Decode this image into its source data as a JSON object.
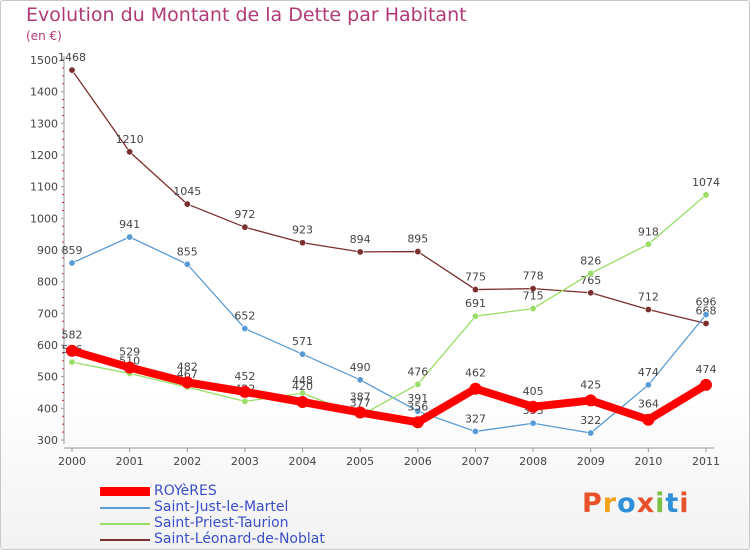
{
  "title": "Evolution du Montant de la Dette par Habitant",
  "unit_label": "(en €)",
  "logo": {
    "text": "Proxiti",
    "colors": [
      "#e8512a",
      "#f2a31c",
      "#2f8fd8",
      "#e8512a",
      "#7bc043",
      "#2f8fd8",
      "#e8512a"
    ]
  },
  "chart_data": {
    "type": "line",
    "title": "Evolution du Montant de la Dette par Habitant",
    "ylabel": "(en €)",
    "xlabel": "",
    "ylim": [
      300,
      1500
    ],
    "yticks": [
      300,
      400,
      500,
      600,
      700,
      800,
      900,
      1000,
      1100,
      1200,
      1300,
      1400,
      1500
    ],
    "x": [
      "2000",
      "2001",
      "2002",
      "2003",
      "2004",
      "2005",
      "2006",
      "2007",
      "2008",
      "2009",
      "2010",
      "2011"
    ],
    "grid": false,
    "legend_position": "bottom-left",
    "series": [
      {
        "name": "Saint-Léonard-de-Noblat",
        "color": "#7a2e2e",
        "values": [
          1468,
          1210,
          1045,
          972,
          923,
          894,
          895,
          775,
          778,
          765,
          712,
          668
        ],
        "labels": [
          "1468",
          "1210",
          "1045",
          "972",
          "923",
          "894",
          "895",
          "775",
          "778",
          "765",
          "712",
          "668"
        ]
      },
      {
        "name": "Saint-Just-le-Martel",
        "color": "#5a9bd5",
        "values": [
          859,
          941,
          855,
          652,
          571,
          490,
          391,
          327,
          353,
          322,
          474,
          696
        ],
        "labels": [
          "859",
          "941",
          "855",
          "652",
          "571",
          "490",
          "391",
          "327",
          "353",
          "322",
          "474",
          "696"
        ]
      },
      {
        "name": "Saint-Priest-Taurion",
        "color": "#99dd66",
        "values": [
          546,
          510,
          467,
          422,
          448,
          377,
          476,
          691,
          715,
          826,
          918,
          1074
        ],
        "labels": [
          "546",
          "510",
          "467",
          "422",
          "448",
          "377",
          "476",
          "691",
          "715",
          "826",
          "918",
          "1074"
        ]
      },
      {
        "name": "ROYèRES",
        "color": "#ff0000",
        "values": [
          582,
          529,
          482,
          452,
          420,
          387,
          356,
          462,
          405,
          425,
          364,
          474
        ],
        "labels": [
          "582",
          "529",
          "482",
          "452",
          "420",
          "387",
          "356",
          "462",
          "405",
          "425",
          "364",
          "474"
        ]
      }
    ],
    "legend": [
      "ROYèRES",
      "Saint-Just-le-Martel",
      "Saint-Priest-Taurion",
      "Saint-Léonard-de-Noblat"
    ]
  }
}
